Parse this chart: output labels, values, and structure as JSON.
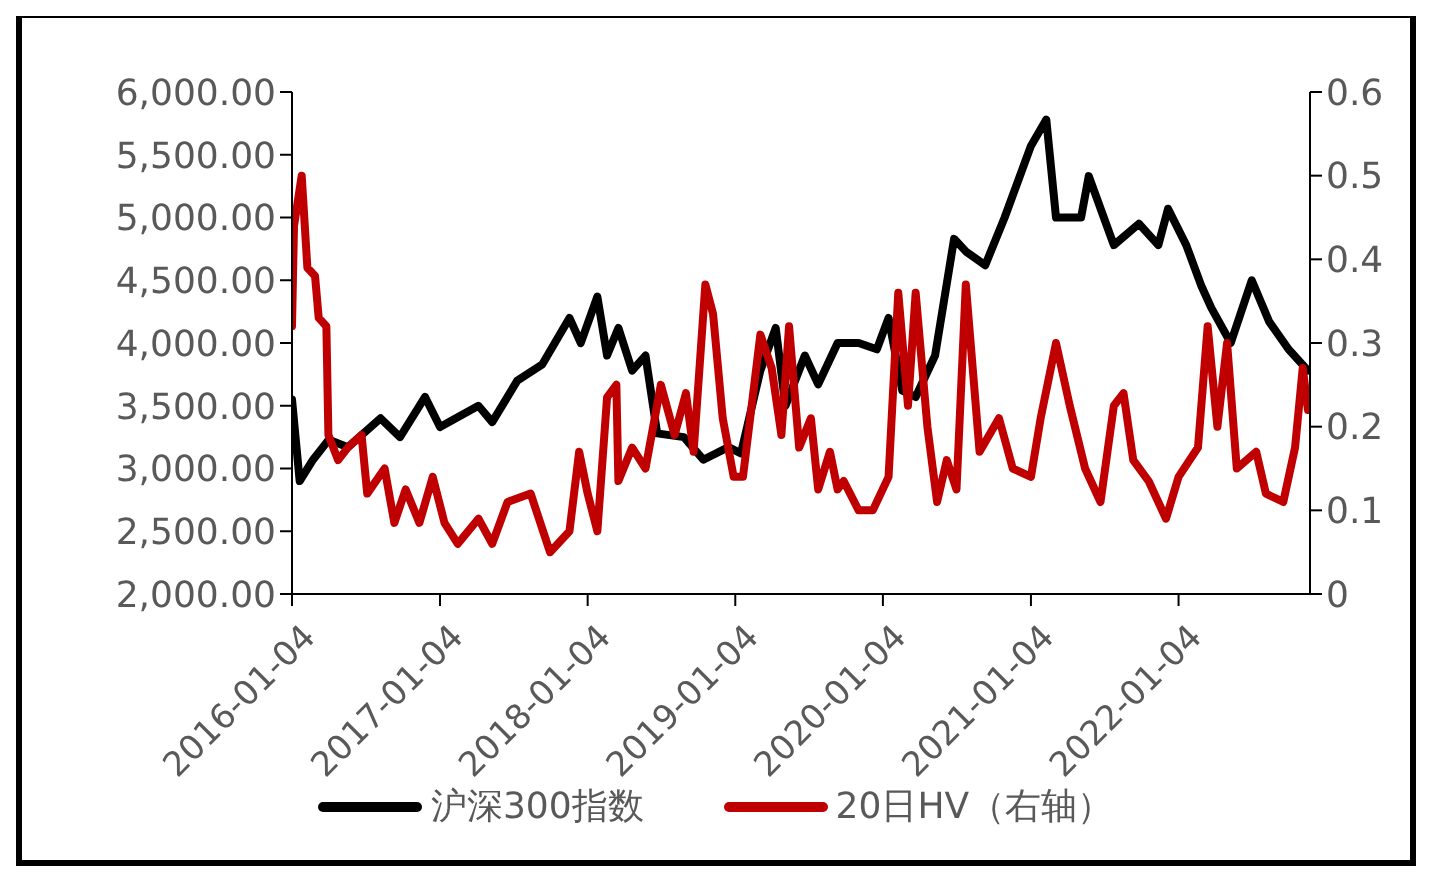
{
  "chart_data": {
    "type": "line",
    "legend": "bottom",
    "marker": "none",
    "line_style": "solid",
    "xlim": [
      "2016-01-04",
      "2022-11-25"
    ],
    "xticks": [
      "2016-01-04",
      "2017-01-04",
      "2018-01-04",
      "2019-01-04",
      "2020-01-04",
      "2021-01-04",
      "2022-01-04"
    ],
    "ylim": [
      2000,
      6000
    ],
    "yticks": [
      {
        "value": 2000,
        "label": "2,000.00"
      },
      {
        "value": 2500,
        "label": "2,500.00"
      },
      {
        "value": 3000,
        "label": "3,000.00"
      },
      {
        "value": 3500,
        "label": "3,500.00"
      },
      {
        "value": 4000,
        "label": "4,000.00"
      },
      {
        "value": 4500,
        "label": "4,500.00"
      },
      {
        "value": 5000,
        "label": "5,000.00"
      },
      {
        "value": 5500,
        "label": "5,500.00"
      },
      {
        "value": 6000,
        "label": "6,000.00"
      }
    ],
    "y2lim": [
      0,
      0.6
    ],
    "y2ticks": [
      0,
      0.1,
      0.2,
      0.3,
      0.4,
      0.5,
      0.6
    ],
    "series": [
      {
        "name": "沪深300指数",
        "color": "#000000",
        "x": [
          "2016-01-04",
          "2016-01-23",
          "2016-02-25",
          "2016-04-04",
          "2016-05-21",
          "2016-08-10",
          "2016-09-27",
          "2016-11-28",
          "2017-01-04",
          "2017-04-09",
          "2017-05-13",
          "2017-07-14",
          "2017-09-14",
          "2017-11-20",
          "2017-12-18",
          "2018-01-28",
          "2018-02-21",
          "2018-03-21",
          "2018-04-24",
          "2018-05-27",
          "2018-06-25",
          "2018-08-30",
          "2018-10-17",
          "2018-12-18",
          "2019-01-18",
          "2019-03-07",
          "2019-04-14",
          "2019-05-08",
          "2019-06-25",
          "2019-07-28",
          "2019-09-14",
          "2019-11-05",
          "2019-12-20",
          "2020-01-18",
          "2020-02-21",
          "2020-03-25",
          "2020-05-12",
          "2020-06-28",
          "2020-07-27",
          "2020-09-13",
          "2020-10-31",
          "2021-01-04",
          "2021-02-11",
          "2021-03-07",
          "2021-05-08",
          "2021-05-27",
          "2021-07-28",
          "2021-09-28",
          "2021-11-15",
          "2021-12-09",
          "2022-01-23",
          "2022-03-02",
          "2022-03-26",
          "2022-05-13",
          "2022-07-04",
          "2022-08-16",
          "2022-10-03",
          "2022-11-20"
        ],
        "values": [
          3550,
          2900,
          3070,
          3230,
          3170,
          3400,
          3250,
          3570,
          3330,
          3500,
          3370,
          3700,
          3830,
          4200,
          4000,
          4370,
          3900,
          4120,
          3780,
          3900,
          3280,
          3250,
          3070,
          3170,
          3120,
          3780,
          4120,
          3500,
          3900,
          3670,
          4000,
          4000,
          3950,
          4200,
          3620,
          3570,
          3900,
          4830,
          4730,
          4620,
          5000,
          5570,
          5780,
          5000,
          5000,
          5330,
          4780,
          4950,
          4780,
          5070,
          4780,
          4450,
          4280,
          4000,
          4500,
          4170,
          3950,
          3780
        ]
      },
      {
        "name": "20日HV（右轴）",
        "color": "#c00000",
        "axis": "y2",
        "x": [
          "2016-01-04",
          "2016-01-09",
          "2016-01-28",
          "2016-02-11",
          "2016-03-01",
          "2016-03-10",
          "2016-03-29",
          "2016-04-03",
          "2016-04-27",
          "2016-05-21",
          "2016-06-24",
          "2016-07-08",
          "2016-08-20",
          "2016-09-13",
          "2016-10-11",
          "2016-11-14",
          "2016-12-17",
          "2017-01-15",
          "2017-02-17",
          "2017-04-09",
          "2017-05-13",
          "2017-06-20",
          "2017-08-16",
          "2017-10-03",
          "2017-11-20",
          "2017-12-14",
          "2018-01-04",
          "2018-01-28",
          "2018-02-21",
          "2018-03-16",
          "2018-03-21",
          "2018-04-24",
          "2018-05-27",
          "2018-07-04",
          "2018-08-07",
          "2018-09-04",
          "2018-09-23",
          "2018-10-22",
          "2018-11-10",
          "2018-12-04",
          "2018-12-31",
          "2019-01-23",
          "2019-03-07",
          "2019-04-04",
          "2019-04-28",
          "2019-05-17",
          "2019-06-11",
          "2019-07-10",
          "2019-07-28",
          "2019-08-26",
          "2019-09-14",
          "2019-09-29",
          "2019-11-05",
          "2019-12-10",
          "2020-01-18",
          "2020-02-11",
          "2020-03-06",
          "2020-03-25",
          "2020-04-23",
          "2020-05-17",
          "2020-06-10",
          "2020-07-04",
          "2020-07-27",
          "2020-08-30",
          "2020-10-17",
          "2020-11-20",
          "2021-01-04",
          "2021-01-28",
          "2021-03-07",
          "2021-04-10",
          "2021-05-18",
          "2021-06-25",
          "2021-07-28",
          "2021-08-21",
          "2021-09-14",
          "2021-10-22",
          "2021-12-04",
          "2022-01-04",
          "2022-02-21",
          "2022-03-17",
          "2022-04-10",
          "2022-05-04",
          "2022-05-28",
          "2022-07-15",
          "2022-08-08",
          "2022-09-20",
          "2022-10-19",
          "2022-11-07",
          "2022-11-20"
        ],
        "values": [
          0.32,
          0.44,
          0.5,
          0.39,
          0.38,
          0.33,
          0.32,
          0.19,
          0.16,
          0.175,
          0.19,
          0.12,
          0.15,
          0.085,
          0.125,
          0.085,
          0.14,
          0.085,
          0.06,
          0.09,
          0.06,
          0.11,
          0.12,
          0.05,
          0.075,
          0.17,
          0.12,
          0.075,
          0.235,
          0.25,
          0.135,
          0.175,
          0.15,
          0.25,
          0.19,
          0.24,
          0.17,
          0.37,
          0.335,
          0.21,
          0.14,
          0.14,
          0.31,
          0.27,
          0.19,
          0.32,
          0.175,
          0.21,
          0.125,
          0.17,
          0.125,
          0.135,
          0.1,
          0.1,
          0.14,
          0.36,
          0.225,
          0.36,
          0.2,
          0.11,
          0.16,
          0.125,
          0.37,
          0.17,
          0.21,
          0.15,
          0.14,
          0.21,
          0.3,
          0.225,
          0.15,
          0.11,
          0.225,
          0.24,
          0.16,
          0.135,
          0.09,
          0.14,
          0.175,
          0.32,
          0.2,
          0.3,
          0.15,
          0.17,
          0.12,
          0.11,
          0.175,
          0.27,
          0.22
        ]
      }
    ]
  }
}
